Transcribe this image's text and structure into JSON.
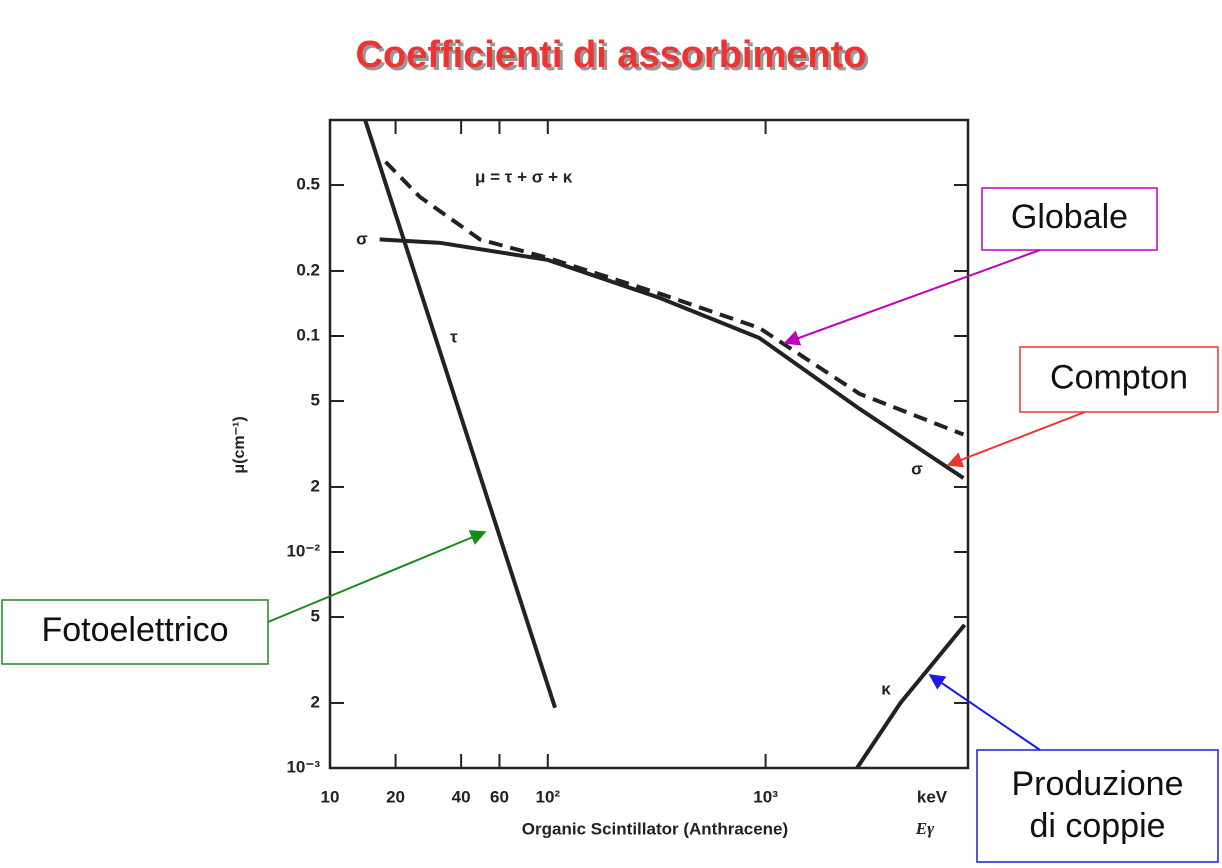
{
  "chart_data": {
    "type": "line",
    "title": "Coefficienti di assorbimento",
    "xlabel": "Organic Scintillator (Anthracene)",
    "xunit": "keV",
    "xsymbol": "Eγ",
    "ylabel": "μ(cm⁻¹)",
    "xscale": "log",
    "yscale": "log",
    "xlim": [
      10,
      8500
    ],
    "ylim": [
      0.001,
      1
    ],
    "xticks": [
      10,
      20,
      40,
      60,
      {
        "value": 100,
        "label": "10²"
      },
      {
        "value": 1000,
        "label": "10³"
      }
    ],
    "yticks": [
      {
        "value": 0.001,
        "label": "10⁻³"
      },
      {
        "value": 0.002,
        "label": "2"
      },
      {
        "value": 0.005,
        "label": "5"
      },
      {
        "value": 0.01,
        "label": "10⁻²"
      },
      {
        "value": 0.02,
        "label": "2"
      },
      {
        "value": 0.05,
        "label": "5"
      },
      0.1,
      0.2,
      0.5
    ],
    "series": [
      {
        "name": "τ",
        "color": "#222222",
        "style": "solid",
        "x": [
          14.5,
          108
        ],
        "values": [
          1.0,
          0.0019
        ]
      },
      {
        "name": "σ",
        "color": "#222222",
        "style": "solid",
        "x": [
          16.9,
          32,
          100,
          327,
          935,
          2700,
          8100
        ],
        "values": [
          0.28,
          0.27,
          0.225,
          0.15,
          0.098,
          0.046,
          0.022
        ]
      },
      {
        "name": "μ = τ + σ + κ",
        "color": "#222222",
        "style": "dashed",
        "x": [
          18,
          25.9,
          48.8,
          100,
          327,
          935,
          2700,
          8100
        ],
        "values": [
          0.64,
          0.44,
          0.28,
          0.23,
          0.157,
          0.109,
          0.054,
          0.035
        ]
      },
      {
        "name": "κ",
        "color": "#222222",
        "style": "solid",
        "x": [
          2630,
          4160,
          8200
        ],
        "values": [
          0.001,
          0.002,
          0.0046
        ]
      }
    ],
    "annotations": [
      "σ"
    ],
    "callouts": [
      {
        "text": "Globale",
        "color": "#c000c0"
      },
      {
        "text": "Compton",
        "color": "#ee3333"
      },
      {
        "text": "Fotoelettrico",
        "color": "#1a8a1a"
      },
      {
        "text": "Produzione di coppie",
        "color": "#1a1aee"
      }
    ]
  }
}
